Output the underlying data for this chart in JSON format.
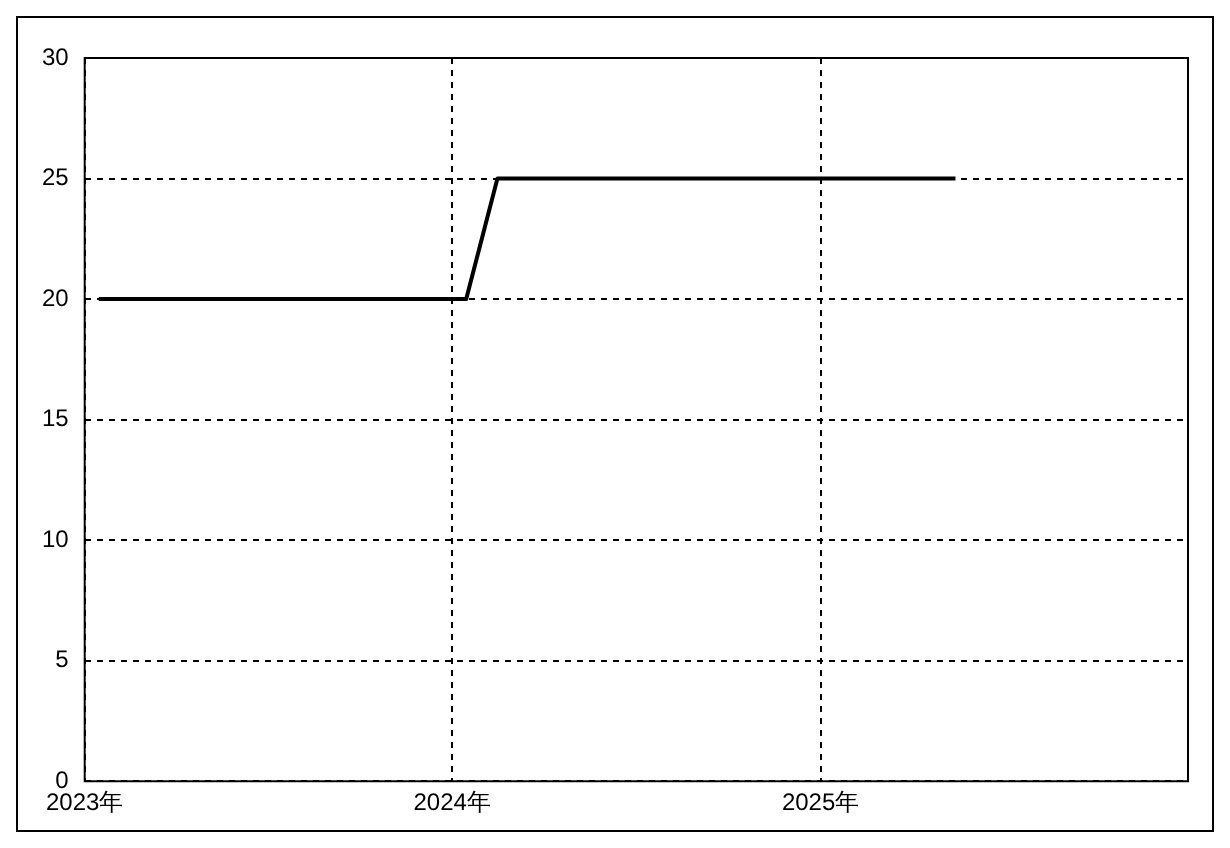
{
  "chart_data": {
    "type": "line",
    "x": [
      "2023-01-15",
      "2024-01-15",
      "2024-02-15",
      "2025-05-15"
    ],
    "series": [
      {
        "color": "#000000",
        "values": [
          20,
          20,
          25,
          25
        ]
      }
    ],
    "xlim": [
      "2023",
      "2026"
    ],
    "xticks": [
      {
        "value": "2023",
        "label": "2023年"
      },
      {
        "value": "2024",
        "label": "2024年"
      },
      {
        "value": "2025",
        "label": "2025年"
      }
    ],
    "ylim": [
      0,
      30
    ],
    "yticks": [
      0,
      5,
      10,
      15,
      20,
      25,
      30
    ],
    "grid": true,
    "legend": false,
    "marker": "none",
    "line_style": "solid"
  }
}
